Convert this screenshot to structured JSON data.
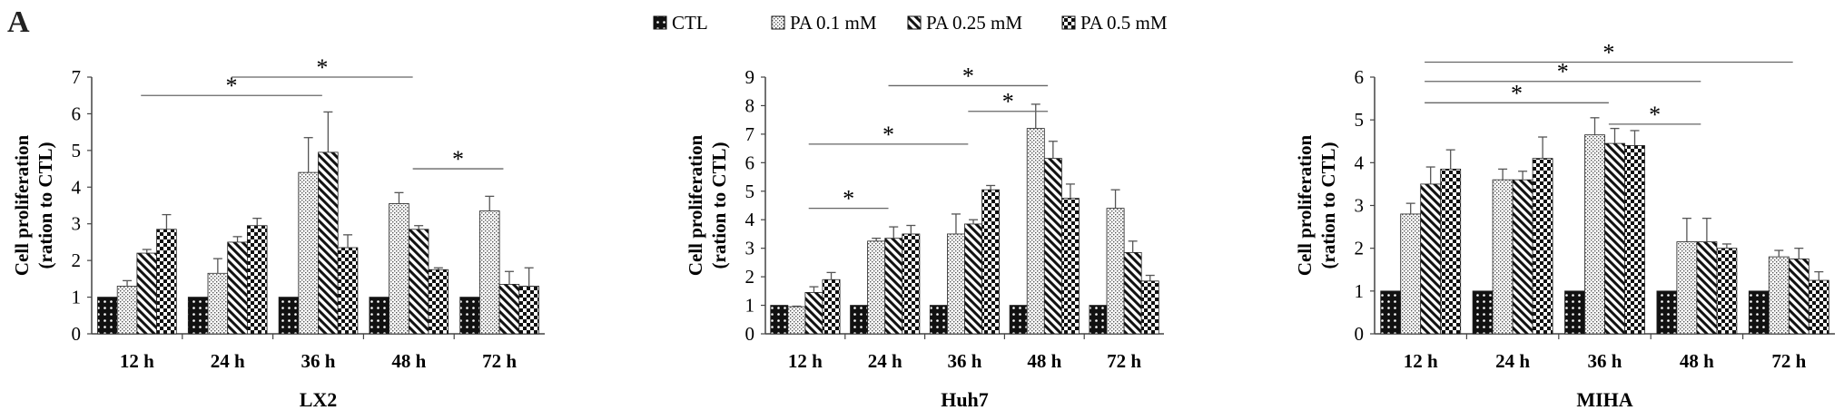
{
  "panel_letter": "A",
  "legend": [
    "CTL",
    "PA 0.1 mM",
    "PA 0.25 mM",
    "PA 0.5 mM"
  ],
  "chart_data": [
    {
      "type": "bar",
      "title": "LX2",
      "xlabel": "LX2",
      "ylabel": "Cell proliferation (ration to CTL)",
      "ylabel_lines": [
        "Cell proliferation",
        "(ration to CTL)"
      ],
      "categories": [
        "12 h",
        "24 h",
        "36 h",
        "48 h",
        "72 h"
      ],
      "ylim": [
        0,
        7
      ],
      "yticks": [
        0,
        1,
        2,
        3,
        4,
        5,
        6,
        7
      ],
      "series": [
        {
          "name": "CTL",
          "values": [
            1,
            1,
            1,
            1,
            1
          ],
          "errors": [
            0,
            0,
            0,
            0,
            0
          ]
        },
        {
          "name": "PA 0.1 mM",
          "values": [
            1.3,
            1.65,
            4.4,
            3.55,
            3.35
          ],
          "errors": [
            0.15,
            0.4,
            0.95,
            0.3,
            0.4
          ]
        },
        {
          "name": "PA 0.25 mM",
          "values": [
            2.2,
            2.5,
            4.95,
            2.85,
            1.35
          ],
          "errors": [
            0.1,
            0.15,
            1.1,
            0.1,
            0.35
          ]
        },
        {
          "name": "PA 0.5 mM",
          "values": [
            2.85,
            2.95,
            2.35,
            1.75,
            1.3
          ],
          "errors": [
            0.4,
            0.2,
            0.35,
            0.05,
            0.5
          ]
        }
      ],
      "significance": [
        {
          "from": 0,
          "to": 2,
          "y": 6.5,
          "label": "*"
        },
        {
          "from": 1,
          "to": 3,
          "y": 7.0,
          "label": "*"
        },
        {
          "from": 3,
          "to": 4,
          "y": 4.5,
          "label": "*"
        }
      ]
    },
    {
      "type": "bar",
      "title": "Huh7",
      "xlabel": "Huh7",
      "ylabel": "Cell proliferation (ration to CTL)",
      "ylabel_lines": [
        "Cell proliferation",
        "(ration to CTL)"
      ],
      "categories": [
        "12 h",
        "24 h",
        "36 h",
        "48 h",
        "72 h"
      ],
      "ylim": [
        0,
        9
      ],
      "yticks": [
        0,
        1,
        2,
        3,
        4,
        5,
        6,
        7,
        8,
        9
      ],
      "series": [
        {
          "name": "CTL",
          "values": [
            1,
            1,
            1,
            1,
            1
          ],
          "errors": [
            0,
            0,
            0,
            0,
            0
          ]
        },
        {
          "name": "PA 0.1 mM",
          "values": [
            0.95,
            3.25,
            3.5,
            7.2,
            4.4
          ],
          "errors": [
            0.02,
            0.1,
            0.7,
            0.85,
            0.65
          ]
        },
        {
          "name": "PA 0.25 mM",
          "values": [
            1.45,
            3.35,
            3.85,
            6.15,
            2.85
          ],
          "errors": [
            0.2,
            0.4,
            0.15,
            0.6,
            0.4
          ]
        },
        {
          "name": "PA 0.5 mM",
          "values": [
            1.9,
            3.5,
            5.05,
            4.75,
            1.85
          ],
          "errors": [
            0.25,
            0.3,
            0.15,
            0.5,
            0.2
          ]
        }
      ],
      "significance": [
        {
          "from": 0,
          "to": 1,
          "y": 4.4,
          "label": "*"
        },
        {
          "from": 0,
          "to": 2,
          "y": 6.65,
          "label": "*"
        },
        {
          "from": 1,
          "to": 3,
          "y": 8.7,
          "label": "*"
        },
        {
          "from": 2,
          "to": 3,
          "y": 7.8,
          "label": "*"
        }
      ]
    },
    {
      "type": "bar",
      "title": "MIHA",
      "xlabel": "MIHA",
      "ylabel": "Cell proliferation (ration to CTL)",
      "ylabel_lines": [
        "Cell proliferation",
        "(ration to CTL)"
      ],
      "categories": [
        "12 h",
        "24 h",
        "36 h",
        "48 h",
        "72 h"
      ],
      "ylim": [
        0,
        6
      ],
      "yticks": [
        0,
        1,
        2,
        3,
        4,
        5,
        6
      ],
      "series": [
        {
          "name": "CTL",
          "values": [
            1,
            1,
            1,
            1,
            1
          ],
          "errors": [
            0,
            0,
            0,
            0,
            0
          ]
        },
        {
          "name": "PA 0.1 mM",
          "values": [
            2.8,
            3.6,
            4.65,
            2.15,
            1.8
          ],
          "errors": [
            0.25,
            0.25,
            0.4,
            0.55,
            0.15
          ]
        },
        {
          "name": "PA 0.25 mM",
          "values": [
            3.5,
            3.6,
            4.45,
            2.15,
            1.75
          ],
          "errors": [
            0.4,
            0.2,
            0.35,
            0.55,
            0.25
          ]
        },
        {
          "name": "PA 0.5 mM",
          "values": [
            3.85,
            4.1,
            4.4,
            2.0,
            1.25
          ],
          "errors": [
            0.45,
            0.5,
            0.35,
            0.1,
            0.2
          ]
        }
      ],
      "significance": [
        {
          "from": 0,
          "to": 2,
          "y": 5.4,
          "label": "*"
        },
        {
          "from": 0,
          "to": 3,
          "y": 5.9,
          "label": "*"
        },
        {
          "from": 0,
          "to": 4,
          "y": 6.35,
          "label": "*"
        },
        {
          "from": 2,
          "to": 3,
          "y": 4.9,
          "label": "*"
        }
      ]
    }
  ]
}
